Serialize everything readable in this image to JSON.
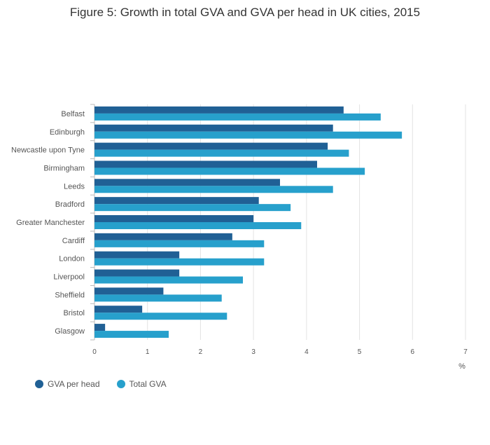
{
  "chart_data": {
    "type": "bar",
    "orientation": "horizontal",
    "title": "Figure 5: Growth in total GVA and GVA per head in UK cities, 2015",
    "categories": [
      "Belfast",
      "Edinburgh",
      "Newcastle upon Tyne",
      "Birmingham",
      "Leeds",
      "Bradford",
      "Greater Manchester",
      "Cardiff",
      "London",
      "Liverpool",
      "Sheffield",
      "Bristol",
      "Glasgow"
    ],
    "series": [
      {
        "name": "GVA per head",
        "color": "#206095",
        "values": [
          4.7,
          4.5,
          4.4,
          4.2,
          3.5,
          3.1,
          3.0,
          2.6,
          1.6,
          1.6,
          1.3,
          0.9,
          0.2
        ]
      },
      {
        "name": "Total GVA",
        "color": "#27a0cc",
        "values": [
          5.4,
          5.8,
          4.8,
          5.1,
          4.5,
          3.7,
          3.9,
          3.2,
          3.2,
          2.8,
          2.4,
          2.5,
          1.4
        ]
      }
    ],
    "xlim": [
      0,
      7
    ],
    "xticks": [
      "0",
      "1",
      "2",
      "3",
      "4",
      "5",
      "6",
      "7"
    ],
    "xlabel": "%",
    "ylabel": "",
    "grid": true,
    "legend": "bottom-left"
  }
}
